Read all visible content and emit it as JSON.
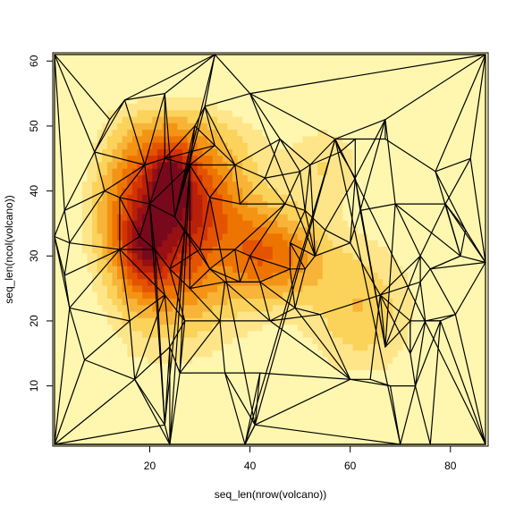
{
  "chart_data": {
    "type": "heatmap",
    "subtype": "image-with-triangulation-mesh",
    "title": "",
    "xlabel": "seq_len(nrow(volcano))",
    "ylabel": "seq_len(ncol(volcano))",
    "xlim": [
      1,
      87
    ],
    "ylim": [
      1,
      61
    ],
    "xticks": [
      20,
      40,
      60,
      80
    ],
    "yticks": [
      10,
      20,
      30,
      40,
      50,
      60
    ],
    "color_scale": "heat.colors (light = low, dark = high)",
    "colors": {
      "low": "#fff7b0",
      "mid": "#f08a00",
      "high": "#7a0a1e",
      "frame": "#000000"
    },
    "grid": false,
    "legend": "none",
    "mesh_vertices": [
      [
        1,
        61
      ],
      [
        33,
        61
      ],
      [
        87,
        61
      ],
      [
        1,
        33
      ],
      [
        1,
        1
      ],
      [
        87,
        1
      ],
      [
        87,
        29
      ],
      [
        3,
        37
      ],
      [
        4,
        22
      ],
      [
        7,
        14
      ],
      [
        3,
        27
      ],
      [
        4,
        32
      ],
      [
        9,
        46
      ],
      [
        11,
        40
      ],
      [
        12,
        51
      ],
      [
        14,
        31
      ],
      [
        14,
        39
      ],
      [
        15,
        54
      ],
      [
        16,
        20
      ],
      [
        17,
        11
      ],
      [
        18,
        33
      ],
      [
        19,
        44
      ],
      [
        20,
        38
      ],
      [
        21,
        31
      ],
      [
        23,
        55
      ],
      [
        23,
        4
      ],
      [
        23,
        45
      ],
      [
        23,
        24
      ],
      [
        24,
        28
      ],
      [
        24,
        16
      ],
      [
        24,
        1
      ],
      [
        25,
        36
      ],
      [
        26,
        12
      ],
      [
        27,
        34
      ],
      [
        27,
        20
      ],
      [
        28,
        44
      ],
      [
        28,
        25
      ],
      [
        29,
        50
      ],
      [
        30,
        31
      ],
      [
        31,
        53
      ],
      [
        32,
        28
      ],
      [
        32,
        39
      ],
      [
        33,
        47
      ],
      [
        34,
        20
      ],
      [
        35,
        12
      ],
      [
        35,
        26
      ],
      [
        37,
        44
      ],
      [
        37,
        31
      ],
      [
        38,
        38
      ],
      [
        38,
        26
      ],
      [
        39,
        1
      ],
      [
        40,
        55
      ],
      [
        40,
        30
      ],
      [
        41,
        4
      ],
      [
        42,
        26
      ],
      [
        42,
        12
      ],
      [
        43,
        42
      ],
      [
        44,
        20
      ],
      [
        46,
        48
      ],
      [
        47,
        38
      ],
      [
        48,
        28
      ],
      [
        48,
        32
      ],
      [
        49,
        22
      ],
      [
        50,
        43
      ],
      [
        51,
        37
      ],
      [
        51,
        28
      ],
      [
        52,
        44
      ],
      [
        53,
        30
      ],
      [
        54,
        21
      ],
      [
        55,
        34
      ],
      [
        57,
        48
      ],
      [
        58,
        46
      ],
      [
        60,
        32
      ],
      [
        60,
        11
      ],
      [
        61,
        42
      ],
      [
        61,
        48
      ],
      [
        62,
        37
      ],
      [
        64,
        11
      ],
      [
        66,
        24
      ],
      [
        67,
        16
      ],
      [
        67,
        51
      ],
      [
        67,
        48
      ],
      [
        68,
        10
      ],
      [
        69,
        38
      ],
      [
        70,
        1
      ],
      [
        72,
        15
      ],
      [
        72,
        20
      ],
      [
        73,
        10
      ],
      [
        74,
        30
      ],
      [
        74,
        26
      ],
      [
        75,
        20
      ],
      [
        76,
        28
      ],
      [
        76,
        1
      ],
      [
        77,
        43
      ],
      [
        78,
        20
      ],
      [
        79,
        38
      ],
      [
        81,
        21
      ],
      [
        82,
        30
      ],
      [
        83,
        34
      ],
      [
        84,
        45
      ]
    ],
    "mesh_edges": [
      [
        0,
        1
      ],
      [
        1,
        2
      ],
      [
        0,
        3
      ],
      [
        3,
        4
      ],
      [
        4,
        5
      ],
      [
        5,
        6
      ],
      [
        6,
        2
      ],
      [
        0,
        12
      ],
      [
        0,
        14
      ],
      [
        0,
        7
      ],
      [
        12,
        7
      ],
      [
        12,
        13
      ],
      [
        7,
        13
      ],
      [
        7,
        3
      ],
      [
        7,
        11
      ],
      [
        3,
        11
      ],
      [
        3,
        10
      ],
      [
        3,
        8
      ],
      [
        8,
        10
      ],
      [
        10,
        11
      ],
      [
        11,
        15
      ],
      [
        11,
        13
      ],
      [
        13,
        16
      ],
      [
        15,
        16
      ],
      [
        10,
        15
      ],
      [
        8,
        15
      ],
      [
        8,
        18
      ],
      [
        8,
        9
      ],
      [
        4,
        8
      ],
      [
        4,
        9
      ],
      [
        9,
        18
      ],
      [
        9,
        19
      ],
      [
        4,
        19
      ],
      [
        4,
        25
      ],
      [
        19,
        25
      ],
      [
        18,
        19
      ],
      [
        14,
        17
      ],
      [
        14,
        12
      ],
      [
        12,
        17
      ],
      [
        17,
        21
      ],
      [
        12,
        21
      ],
      [
        13,
        21
      ],
      [
        16,
        21
      ],
      [
        16,
        22
      ],
      [
        21,
        22
      ],
      [
        17,
        24
      ],
      [
        24,
        21
      ],
      [
        24,
        26
      ],
      [
        21,
        26
      ],
      [
        22,
        26
      ],
      [
        1,
        17
      ],
      [
        1,
        24
      ],
      [
        1,
        31
      ],
      [
        24,
        31
      ],
      [
        1,
        39
      ],
      [
        39,
        31
      ],
      [
        1,
        51
      ],
      [
        51,
        39
      ],
      [
        51,
        2
      ],
      [
        37,
        31
      ],
      [
        37,
        26
      ],
      [
        37,
        39
      ],
      [
        37,
        35
      ],
      [
        35,
        26
      ],
      [
        35,
        22
      ],
      [
        35,
        31
      ],
      [
        31,
        40
      ],
      [
        16,
        20
      ],
      [
        20,
        15
      ],
      [
        20,
        22
      ],
      [
        20,
        23
      ],
      [
        15,
        23
      ],
      [
        22,
        23
      ],
      [
        22,
        25
      ],
      [
        22,
        31
      ],
      [
        23,
        25
      ],
      [
        23,
        28
      ],
      [
        23,
        27
      ],
      [
        15,
        27
      ],
      [
        15,
        18
      ],
      [
        18,
        27
      ],
      [
        19,
        27
      ],
      [
        27,
        29
      ],
      [
        19,
        29
      ],
      [
        25,
        29
      ],
      [
        25,
        30
      ],
      [
        29,
        30
      ],
      [
        19,
        30
      ],
      [
        4,
        30
      ],
      [
        30,
        50
      ],
      [
        30,
        33
      ],
      [
        32,
        30
      ],
      [
        29,
        32
      ],
      [
        27,
        34
      ],
      [
        29,
        34
      ],
      [
        32,
        34
      ],
      [
        28,
        34
      ],
      [
        28,
        36
      ],
      [
        28,
        38
      ],
      [
        25,
        33
      ],
      [
        33,
        28
      ],
      [
        31,
        33
      ],
      [
        33,
        38
      ],
      [
        33,
        35
      ],
      [
        35,
        36
      ],
      [
        26,
        42
      ],
      [
        35,
        42
      ],
      [
        42,
        37
      ],
      [
        42,
        46
      ],
      [
        42,
        39
      ],
      [
        39,
        46
      ],
      [
        35,
        46
      ],
      [
        35,
        41
      ],
      [
        41,
        46
      ],
      [
        41,
        48
      ],
      [
        46,
        48
      ],
      [
        41,
        38
      ],
      [
        38,
        47
      ],
      [
        38,
        40
      ],
      [
        40,
        36
      ],
      [
        36,
        45
      ],
      [
        45,
        40
      ],
      [
        36,
        43
      ],
      [
        34,
        43
      ],
      [
        43,
        45
      ],
      [
        32,
        43
      ],
      [
        32,
        44
      ],
      [
        43,
        44
      ],
      [
        44,
        55
      ],
      [
        43,
        57
      ],
      [
        45,
        57
      ],
      [
        45,
        49
      ],
      [
        49,
        40
      ],
      [
        40,
        47
      ],
      [
        47,
        49
      ],
      [
        47,
        52
      ],
      [
        49,
        52
      ],
      [
        52,
        54
      ],
      [
        49,
        54
      ],
      [
        45,
        54
      ],
      [
        54,
        57
      ],
      [
        52,
        60
      ],
      [
        32,
        35
      ],
      [
        44,
        50
      ],
      [
        50,
        55
      ],
      [
        44,
        53
      ],
      [
        53,
        55
      ],
      [
        50,
        53
      ],
      [
        53,
        41
      ],
      [
        50,
        70
      ],
      [
        53,
        70
      ],
      [
        46,
        56
      ],
      [
        56,
        48
      ],
      [
        56,
        59
      ],
      [
        48,
        59
      ],
      [
        59,
        52
      ],
      [
        47,
        59
      ],
      [
        56,
        58
      ],
      [
        46,
        58
      ],
      [
        58,
        51
      ],
      [
        51,
        67
      ],
      [
        51,
        70
      ],
      [
        58,
        63
      ],
      [
        63,
        56
      ],
      [
        63,
        59
      ],
      [
        63,
        66
      ],
      [
        59,
        64
      ],
      [
        63,
        64
      ],
      [
        64,
        66
      ],
      [
        64,
        69
      ],
      [
        64,
        67
      ],
      [
        66,
        67
      ],
      [
        66,
        58
      ],
      [
        66,
        70
      ],
      [
        66,
        71
      ],
      [
        70,
        71
      ],
      [
        71,
        74
      ],
      [
        70,
        75
      ],
      [
        71,
        75
      ],
      [
        75,
        74
      ],
      [
        74,
        80
      ],
      [
        70,
        80
      ],
      [
        75,
        81
      ],
      [
        80,
        81
      ],
      [
        81,
        93
      ],
      [
        80,
        2
      ],
      [
        93,
        2
      ],
      [
        93,
        99
      ],
      [
        99,
        2
      ],
      [
        99,
        6
      ],
      [
        93,
        98
      ],
      [
        93,
        97
      ],
      [
        97,
        98
      ],
      [
        98,
        6
      ],
      [
        97,
        6
      ],
      [
        97,
        91
      ],
      [
        91,
        6
      ],
      [
        91,
        96
      ],
      [
        96,
        6
      ],
      [
        96,
        5
      ],
      [
        95,
        6
      ],
      [
        95,
        99
      ],
      [
        95,
        98
      ],
      [
        60,
        65
      ],
      [
        60,
        61
      ],
      [
        61,
        65
      ],
      [
        65,
        62
      ],
      [
        60,
        62
      ],
      [
        62,
        57
      ],
      [
        57,
        68
      ],
      [
        62,
        68
      ],
      [
        54,
        62
      ],
      [
        54,
        60
      ],
      [
        61,
        67
      ],
      [
        65,
        67
      ],
      [
        61,
        64
      ],
      [
        62,
        73
      ],
      [
        68,
        73
      ],
      [
        55,
        73
      ],
      [
        57,
        73
      ],
      [
        67,
        69
      ],
      [
        69,
        72
      ],
      [
        67,
        72
      ],
      [
        72,
        74
      ],
      [
        69,
        74
      ],
      [
        72,
        76
      ],
      [
        74,
        76
      ],
      [
        74,
        79
      ],
      [
        76,
        79
      ],
      [
        76,
        83
      ],
      [
        79,
        83
      ],
      [
        72,
        78
      ],
      [
        68,
        78
      ],
      [
        78,
        77
      ],
      [
        77,
        73
      ],
      [
        78,
        79
      ],
      [
        77,
        82
      ],
      [
        73,
        82
      ],
      [
        78,
        86
      ],
      [
        79,
        86
      ],
      [
        86,
        85
      ],
      [
        85,
        78
      ],
      [
        85,
        87
      ],
      [
        87,
        82
      ],
      [
        82,
        84
      ],
      [
        84,
        87
      ],
      [
        87,
        92
      ],
      [
        84,
        92
      ],
      [
        92,
        94
      ],
      [
        94,
        87
      ],
      [
        94,
        90
      ],
      [
        90,
        87
      ],
      [
        90,
        85
      ],
      [
        88,
        89
      ],
      [
        89,
        91
      ],
      [
        88,
        91
      ],
      [
        91,
        97
      ],
      [
        89,
        90
      ],
      [
        90,
        94
      ],
      [
        90,
        96
      ],
      [
        96,
        94
      ],
      [
        94,
        5
      ],
      [
        92,
        5
      ],
      [
        73,
        53
      ],
      [
        53,
        50
      ],
      [
        53,
        84
      ],
      [
        84,
        70
      ],
      [
        84,
        50
      ],
      [
        70,
        5
      ],
      [
        83,
        88
      ],
      [
        88,
        78
      ],
      [
        79,
        88
      ],
      [
        83,
        95
      ],
      [
        95,
        88
      ],
      [
        83,
        97
      ],
      [
        76,
        80
      ],
      [
        80,
        83
      ],
      [
        95,
        97
      ],
      [
        86,
        89
      ],
      [
        78,
        89
      ],
      [
        86,
        90
      ],
      [
        85,
        86
      ]
    ]
  }
}
